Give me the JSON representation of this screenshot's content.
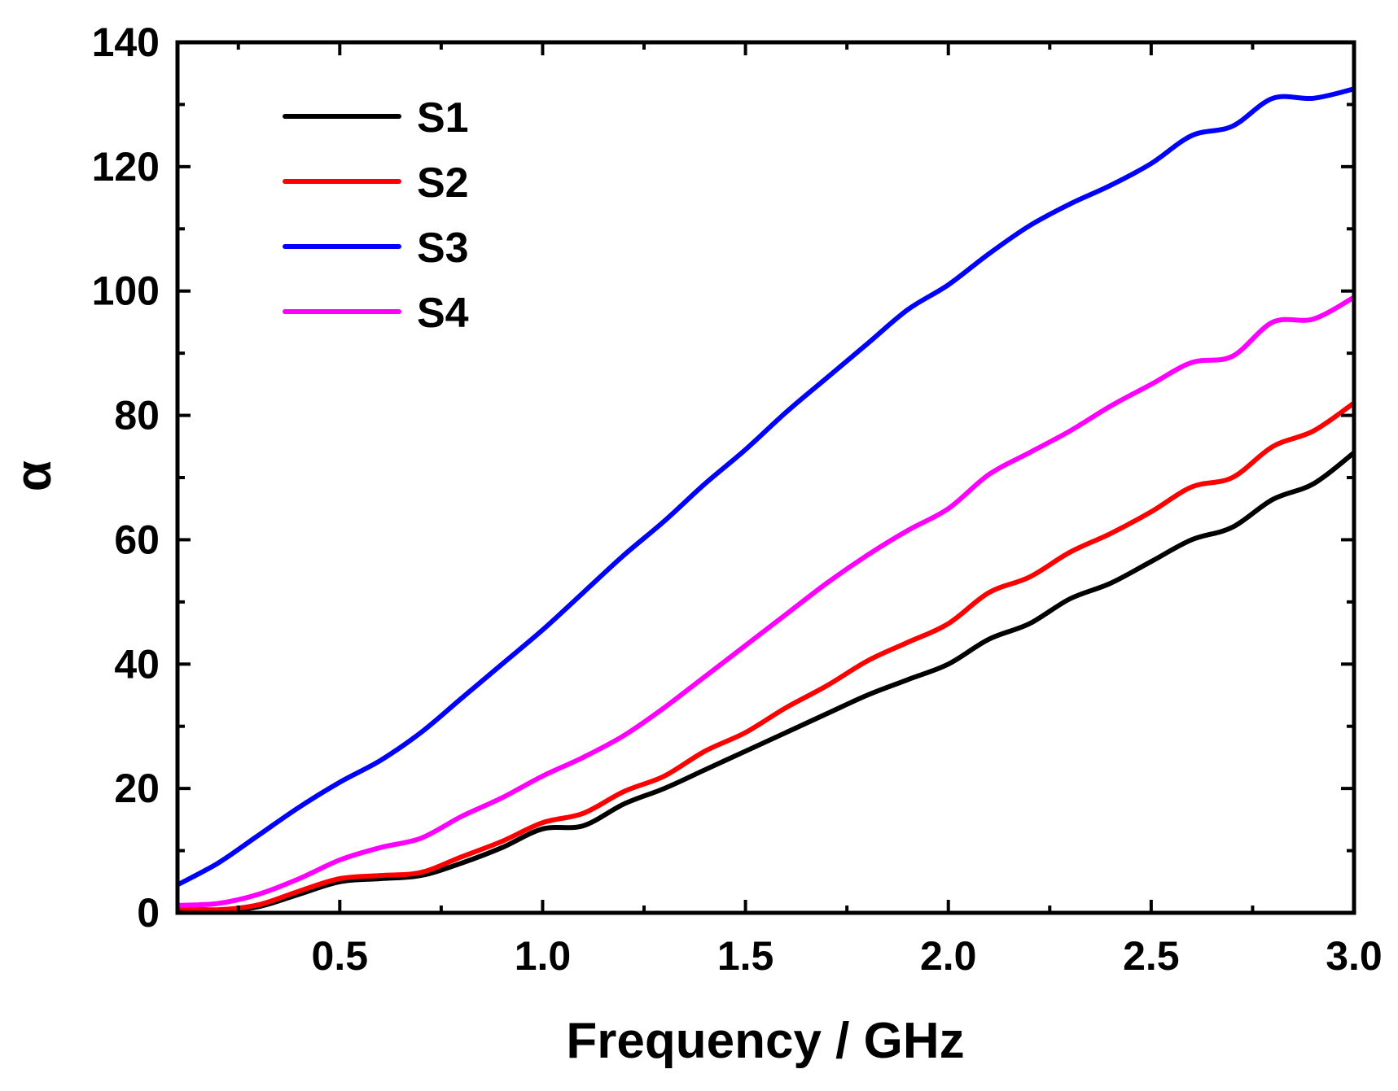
{
  "chart_data": {
    "type": "line",
    "title": "",
    "xlabel": "Frequency / GHz",
    "ylabel": "α",
    "xlim": [
      0.1,
      3.0
    ],
    "ylim": [
      0,
      140
    ],
    "xticks": [
      0.5,
      1.0,
      1.5,
      2.0,
      2.5,
      3.0
    ],
    "xtick_labels": [
      "0.5",
      "1.0",
      "1.5",
      "2.0",
      "2.5",
      "3.0"
    ],
    "yticks": [
      0,
      20,
      40,
      60,
      80,
      100,
      120,
      140
    ],
    "ytick_labels": [
      "0",
      "20",
      "40",
      "60",
      "80",
      "100",
      "120",
      "140"
    ],
    "grid": false,
    "legend_position": "top-left",
    "x": [
      0.1,
      0.2,
      0.3,
      0.4,
      0.5,
      0.6,
      0.7,
      0.8,
      0.9,
      1.0,
      1.1,
      1.2,
      1.3,
      1.4,
      1.5,
      1.6,
      1.7,
      1.8,
      1.9,
      2.0,
      2.1,
      2.2,
      2.3,
      2.4,
      2.5,
      2.6,
      2.7,
      2.8,
      2.9,
      3.0
    ],
    "series": [
      {
        "name": "S1",
        "color": "#000000",
        "values": [
          0.5,
          0.3,
          1,
          3,
          5,
          5.5,
          6,
          8,
          10.5,
          13.5,
          14,
          17.5,
          20,
          23,
          26,
          29,
          32,
          35,
          37.5,
          40,
          44,
          46.5,
          50.5,
          53,
          56.5,
          60,
          62,
          66.5,
          69,
          74
        ]
      },
      {
        "name": "S2",
        "color": "#ff0000",
        "values": [
          0.8,
          0.5,
          1.3,
          3.5,
          5.5,
          6,
          6.5,
          9,
          11.5,
          14.5,
          16,
          19.5,
          22,
          26,
          29,
          33,
          36.5,
          40.5,
          43.5,
          46.5,
          51.5,
          54,
          58,
          61,
          64.5,
          68.5,
          70,
          75,
          77.5,
          82
        ]
      },
      {
        "name": "S3",
        "color": "#0000ff",
        "values": [
          4.5,
          8,
          12.5,
          17,
          21,
          24.5,
          29,
          34.5,
          40,
          45.5,
          51.5,
          57.5,
          63,
          69,
          74.5,
          80.5,
          86,
          91.5,
          97,
          101,
          106,
          110.5,
          114,
          117,
          120.5,
          125,
          126.5,
          131,
          131,
          132.5
        ]
      },
      {
        "name": "S4",
        "color": "#ff00ff",
        "values": [
          1.2,
          1.5,
          3,
          5.5,
          8.5,
          10.5,
          12,
          15.5,
          18.5,
          22,
          25,
          28.5,
          33,
          38,
          43,
          48,
          53,
          57.5,
          61.5,
          65,
          70.5,
          74,
          77.5,
          81.5,
          85,
          88.5,
          89.5,
          95,
          95.5,
          99
        ]
      }
    ]
  }
}
